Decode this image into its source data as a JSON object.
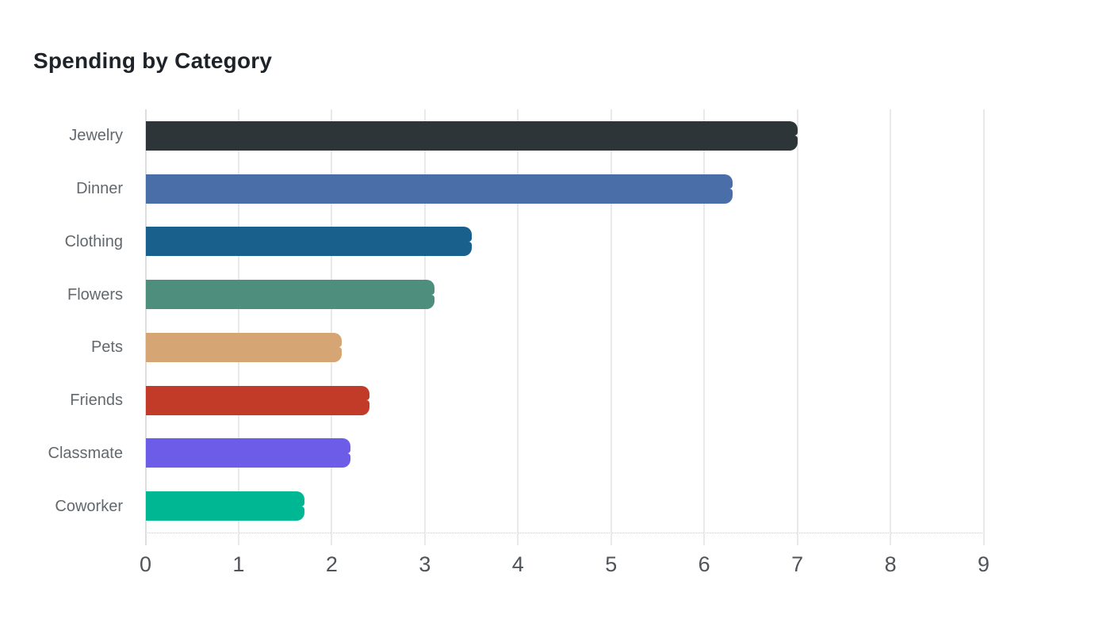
{
  "chart_data": {
    "type": "bar",
    "orientation": "horizontal",
    "title": "Spending by Category",
    "categories": [
      "Jewelry",
      "Dinner",
      "Clothing",
      "Flowers",
      "Pets",
      "Friends",
      "Classmate",
      "Coworker"
    ],
    "values": [
      7.0,
      6.3,
      3.5,
      3.1,
      2.1,
      2.4,
      2.2,
      1.7
    ],
    "bar_colors": [
      "#2d3538",
      "#4a6fa8",
      "#19608c",
      "#4e8e7d",
      "#d5a673",
      "#c23a28",
      "#6c5ce7",
      "#00b794"
    ],
    "x_ticks": [
      "0",
      "1",
      "2",
      "3",
      "4",
      "5",
      "6",
      "7",
      "8",
      "9"
    ],
    "xlim": [
      0,
      9
    ],
    "xlabel": "",
    "ylabel": "",
    "grid": true,
    "legend": false,
    "colors": {
      "title_text": "#1d2329",
      "category_label_text": "#63686d",
      "tick_label_text": "#505459",
      "gridline": "#e9e9e9",
      "zero_line": "#dcdfe1",
      "baseline": "#c9c9c9",
      "background": "#ffffff"
    }
  }
}
